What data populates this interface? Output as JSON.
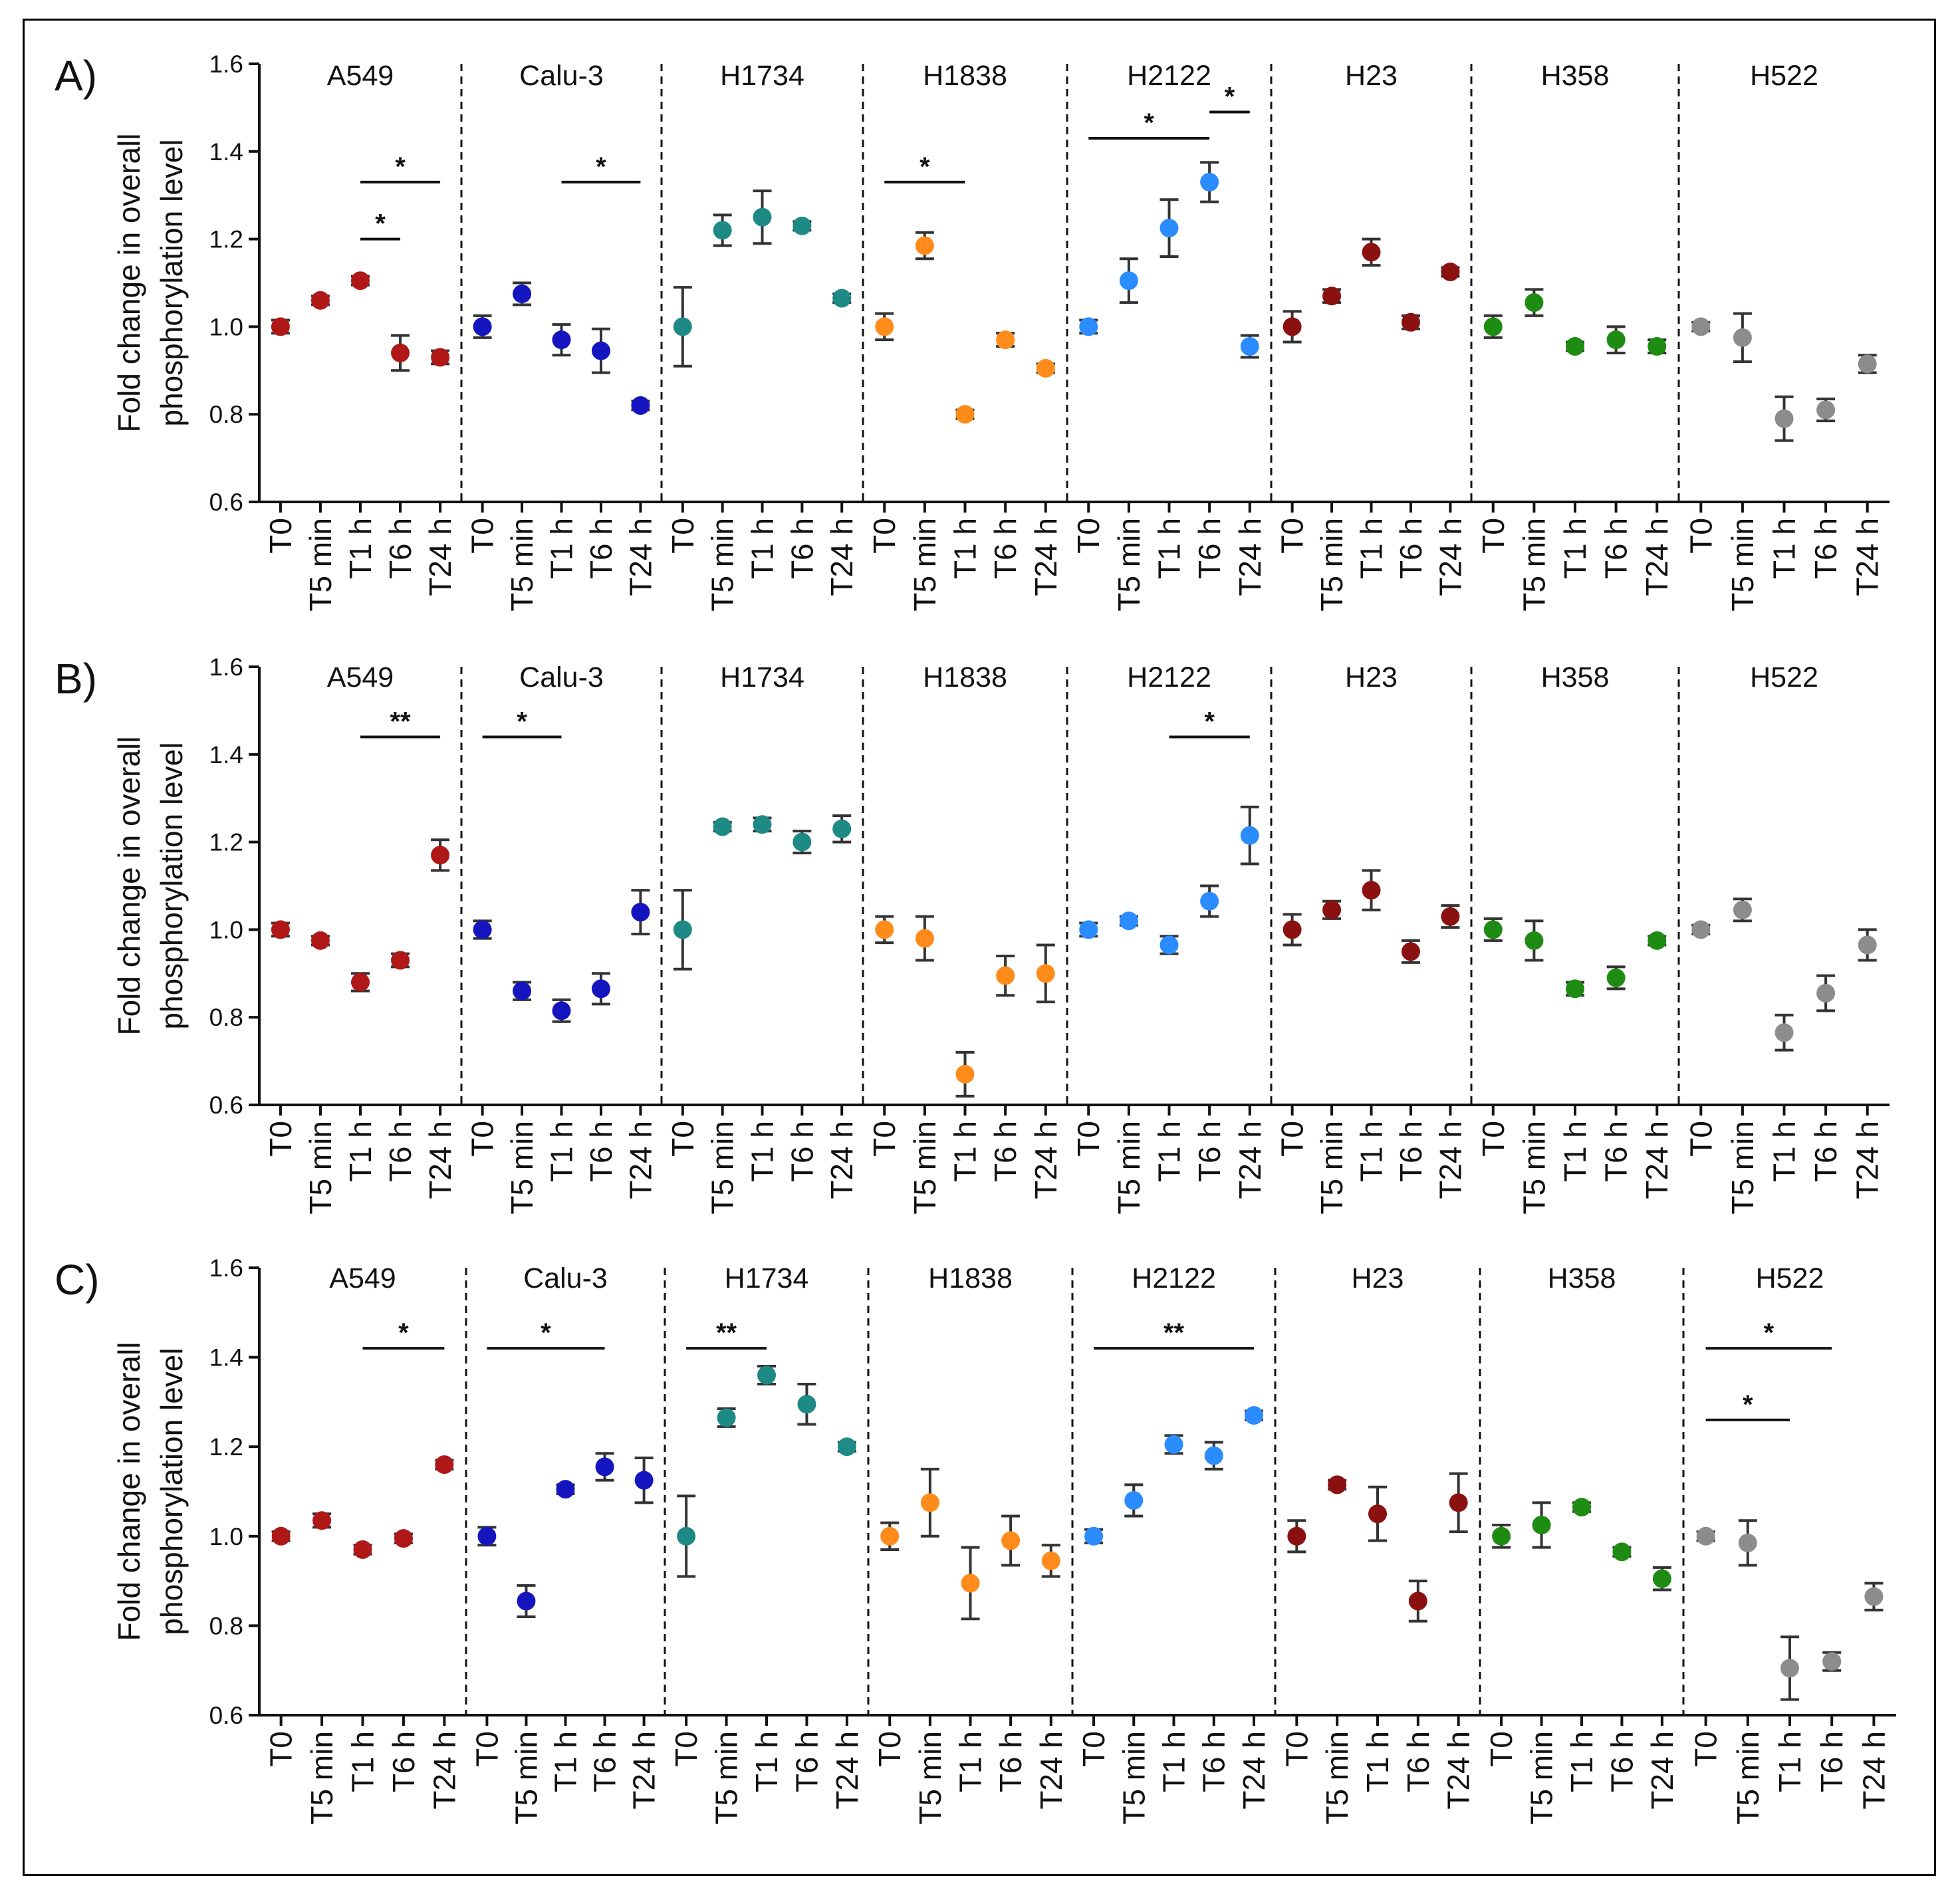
{
  "figure": {
    "axis_color": "#111111"
  },
  "chart_data": [
    {
      "type": "scatter",
      "panel_label": "A)",
      "ylabel_lines": [
        "Fold change in overall",
        "phosphorylation level"
      ],
      "ylim": [
        0.6,
        1.6
      ],
      "yticks": [
        0.6,
        0.8,
        1.0,
        1.2,
        1.4,
        1.6
      ],
      "ytick_labels": [
        "0.6",
        "0.8",
        "1.0",
        "1.2",
        "1.4",
        "1.6"
      ],
      "timepoints": [
        "T0",
        "T5 min",
        "T1 h",
        "T6 h",
        "T24 h"
      ],
      "cell_lines": [
        {
          "name": "A549",
          "color": "#b01818",
          "means": [
            1.0,
            1.06,
            1.105,
            0.94,
            0.93
          ],
          "errors": [
            0.015,
            0.01,
            0.01,
            0.04,
            0.015
          ],
          "significance": [
            {
              "from": 2,
              "to": 4,
              "y": 1.33,
              "label": "*"
            },
            {
              "from": 2,
              "to": 3,
              "y": 1.2,
              "label": "*"
            }
          ]
        },
        {
          "name": "Calu-3",
          "color": "#1515c0",
          "means": [
            1.0,
            1.075,
            0.97,
            0.945,
            0.82
          ],
          "errors": [
            0.025,
            0.025,
            0.035,
            0.05,
            0.01
          ],
          "significance": [
            {
              "from": 2,
              "to": 4,
              "y": 1.33,
              "label": "*"
            }
          ]
        },
        {
          "name": "H1734",
          "color": "#1e8a85",
          "means": [
            1.0,
            1.22,
            1.25,
            1.23,
            1.065
          ],
          "errors": [
            0.09,
            0.035,
            0.06,
            0.01,
            0.01
          ],
          "significance": []
        },
        {
          "name": "H1838",
          "color": "#ff8c1a",
          "means": [
            1.0,
            1.185,
            0.8,
            0.97,
            0.905
          ],
          "errors": [
            0.03,
            0.03,
            0.01,
            0.015,
            0.01
          ],
          "significance": [
            {
              "from": 0,
              "to": 2,
              "y": 1.33,
              "label": "*"
            }
          ]
        },
        {
          "name": "H2122",
          "color": "#2a8cff",
          "means": [
            1.0,
            1.105,
            1.225,
            1.33,
            0.955
          ],
          "errors": [
            0.015,
            0.05,
            0.065,
            0.045,
            0.025
          ],
          "significance": [
            {
              "from": 0,
              "to": 3,
              "y": 1.43,
              "label": "*"
            },
            {
              "from": 3,
              "to": 4,
              "y": 1.49,
              "label": "*"
            }
          ]
        },
        {
          "name": "H23",
          "color": "#8b1010",
          "means": [
            1.0,
            1.07,
            1.17,
            1.01,
            1.125
          ],
          "errors": [
            0.035,
            0.015,
            0.03,
            0.015,
            0.01
          ],
          "significance": []
        },
        {
          "name": "H358",
          "color": "#1e8c12",
          "means": [
            1.0,
            1.055,
            0.955,
            0.97,
            0.955
          ],
          "errors": [
            0.025,
            0.03,
            0.01,
            0.03,
            0.015
          ],
          "significance": []
        },
        {
          "name": "H522",
          "color": "#8c8c8c",
          "means": [
            1.0,
            0.975,
            0.79,
            0.81,
            0.915
          ],
          "errors": [
            0.01,
            0.055,
            0.05,
            0.025,
            0.02
          ],
          "significance": []
        }
      ]
    },
    {
      "type": "scatter",
      "panel_label": "B)",
      "ylabel_lines": [
        "Fold change in overall",
        "phosphorylation level"
      ],
      "ylim": [
        0.6,
        1.6
      ],
      "yticks": [
        0.6,
        0.8,
        1.0,
        1.2,
        1.4,
        1.6
      ],
      "ytick_labels": [
        "0.6",
        "0.8",
        "1.0",
        "1.2",
        "1.4",
        "1.6"
      ],
      "timepoints": [
        "T0",
        "T5 min",
        "T1 h",
        "T6 h",
        "T24 h"
      ],
      "cell_lines": [
        {
          "name": "A549",
          "color": "#b01818",
          "means": [
            1.0,
            0.975,
            0.88,
            0.93,
            1.17
          ],
          "errors": [
            0.015,
            0.01,
            0.02,
            0.015,
            0.035
          ],
          "significance": [
            {
              "from": 2,
              "to": 4,
              "y": 1.44,
              "label": "**"
            }
          ]
        },
        {
          "name": "Calu-3",
          "color": "#1515c0",
          "means": [
            1.0,
            0.86,
            0.815,
            0.865,
            1.04
          ],
          "errors": [
            0.02,
            0.02,
            0.025,
            0.035,
            0.05
          ],
          "significance": [
            {
              "from": 0,
              "to": 2,
              "y": 1.44,
              "label": "*"
            }
          ]
        },
        {
          "name": "H1734",
          "color": "#1e8a85",
          "means": [
            1.0,
            1.235,
            1.24,
            1.2,
            1.23
          ],
          "errors": [
            0.09,
            0.01,
            0.015,
            0.025,
            0.03
          ],
          "significance": []
        },
        {
          "name": "H1838",
          "color": "#ff8c1a",
          "means": [
            1.0,
            0.98,
            0.67,
            0.895,
            0.9
          ],
          "errors": [
            0.03,
            0.05,
            0.05,
            0.045,
            0.065
          ],
          "significance": []
        },
        {
          "name": "H2122",
          "color": "#2a8cff",
          "means": [
            1.0,
            1.02,
            0.965,
            1.065,
            1.215
          ],
          "errors": [
            0.015,
            0.01,
            0.02,
            0.035,
            0.065
          ],
          "significance": [
            {
              "from": 2,
              "to": 4,
              "y": 1.44,
              "label": "*"
            }
          ]
        },
        {
          "name": "H23",
          "color": "#8b1010",
          "means": [
            1.0,
            1.045,
            1.09,
            0.95,
            1.03
          ],
          "errors": [
            0.035,
            0.02,
            0.045,
            0.025,
            0.025
          ],
          "significance": []
        },
        {
          "name": "H358",
          "color": "#1e8c12",
          "means": [
            1.0,
            0.975,
            0.865,
            0.89,
            0.975
          ],
          "errors": [
            0.025,
            0.045,
            0.015,
            0.025,
            0.01
          ],
          "significance": []
        },
        {
          "name": "H522",
          "color": "#8c8c8c",
          "means": [
            1.0,
            1.045,
            0.765,
            0.855,
            0.965
          ],
          "errors": [
            0.01,
            0.025,
            0.04,
            0.04,
            0.035
          ],
          "significance": []
        }
      ]
    },
    {
      "type": "scatter",
      "panel_label": "C)",
      "ylabel_lines": [
        "Fold change in overall",
        "phosphorylation level"
      ],
      "ylim": [
        0.6,
        1.6
      ],
      "yticks": [
        0.6,
        0.8,
        1.0,
        1.2,
        1.4,
        1.6
      ],
      "ytick_labels": [
        "0.6",
        "0.8",
        "1.0",
        "1.2",
        "1.4",
        "1.6"
      ],
      "timepoints": [
        "T0",
        "T5 min",
        "T1 h",
        "T6 h",
        "T24 h"
      ],
      "cell_lines": [
        {
          "name": "A549",
          "color": "#b01818",
          "means": [
            1.0,
            1.035,
            0.97,
            0.995,
            1.16
          ],
          "errors": [
            0.01,
            0.015,
            0.01,
            0.01,
            0.01
          ],
          "significance": [
            {
              "from": 2,
              "to": 4,
              "y": 1.42,
              "label": "*"
            }
          ]
        },
        {
          "name": "Calu-3",
          "color": "#1515c0",
          "means": [
            1.0,
            0.855,
            1.105,
            1.155,
            1.125
          ],
          "errors": [
            0.02,
            0.035,
            0.01,
            0.03,
            0.05
          ],
          "significance": [
            {
              "from": 0,
              "to": 3,
              "y": 1.42,
              "label": "*"
            }
          ]
        },
        {
          "name": "H1734",
          "color": "#1e8a85",
          "means": [
            1.0,
            1.265,
            1.36,
            1.295,
            1.2
          ],
          "errors": [
            0.09,
            0.02,
            0.02,
            0.045,
            0.01
          ],
          "significance": [
            {
              "from": 0,
              "to": 2,
              "y": 1.42,
              "label": "**"
            }
          ]
        },
        {
          "name": "H1838",
          "color": "#ff8c1a",
          "means": [
            1.0,
            1.075,
            0.895,
            0.99,
            0.945
          ],
          "errors": [
            0.03,
            0.075,
            0.08,
            0.055,
            0.035
          ],
          "significance": []
        },
        {
          "name": "H2122",
          "color": "#2a8cff",
          "means": [
            1.0,
            1.08,
            1.205,
            1.18,
            1.27
          ],
          "errors": [
            0.015,
            0.035,
            0.02,
            0.03,
            0.01
          ],
          "significance": [
            {
              "from": 0,
              "to": 4,
              "y": 1.42,
              "label": "**"
            }
          ]
        },
        {
          "name": "H23",
          "color": "#8b1010",
          "means": [
            1.0,
            1.115,
            1.05,
            0.855,
            1.075
          ],
          "errors": [
            0.035,
            0.01,
            0.06,
            0.045,
            0.065
          ],
          "significance": []
        },
        {
          "name": "H358",
          "color": "#1e8c12",
          "means": [
            1.0,
            1.025,
            1.065,
            0.965,
            0.905
          ],
          "errors": [
            0.025,
            0.05,
            0.01,
            0.01,
            0.025
          ],
          "significance": []
        },
        {
          "name": "H522",
          "color": "#8c8c8c",
          "means": [
            1.0,
            0.985,
            0.705,
            0.72,
            0.865
          ],
          "errors": [
            0.01,
            0.05,
            0.07,
            0.02,
            0.03
          ],
          "significance": [
            {
              "from": 0,
              "to": 3,
              "y": 1.42,
              "label": "*"
            },
            {
              "from": 0,
              "to": 2,
              "y": 1.26,
              "label": "*"
            }
          ]
        }
      ]
    }
  ]
}
